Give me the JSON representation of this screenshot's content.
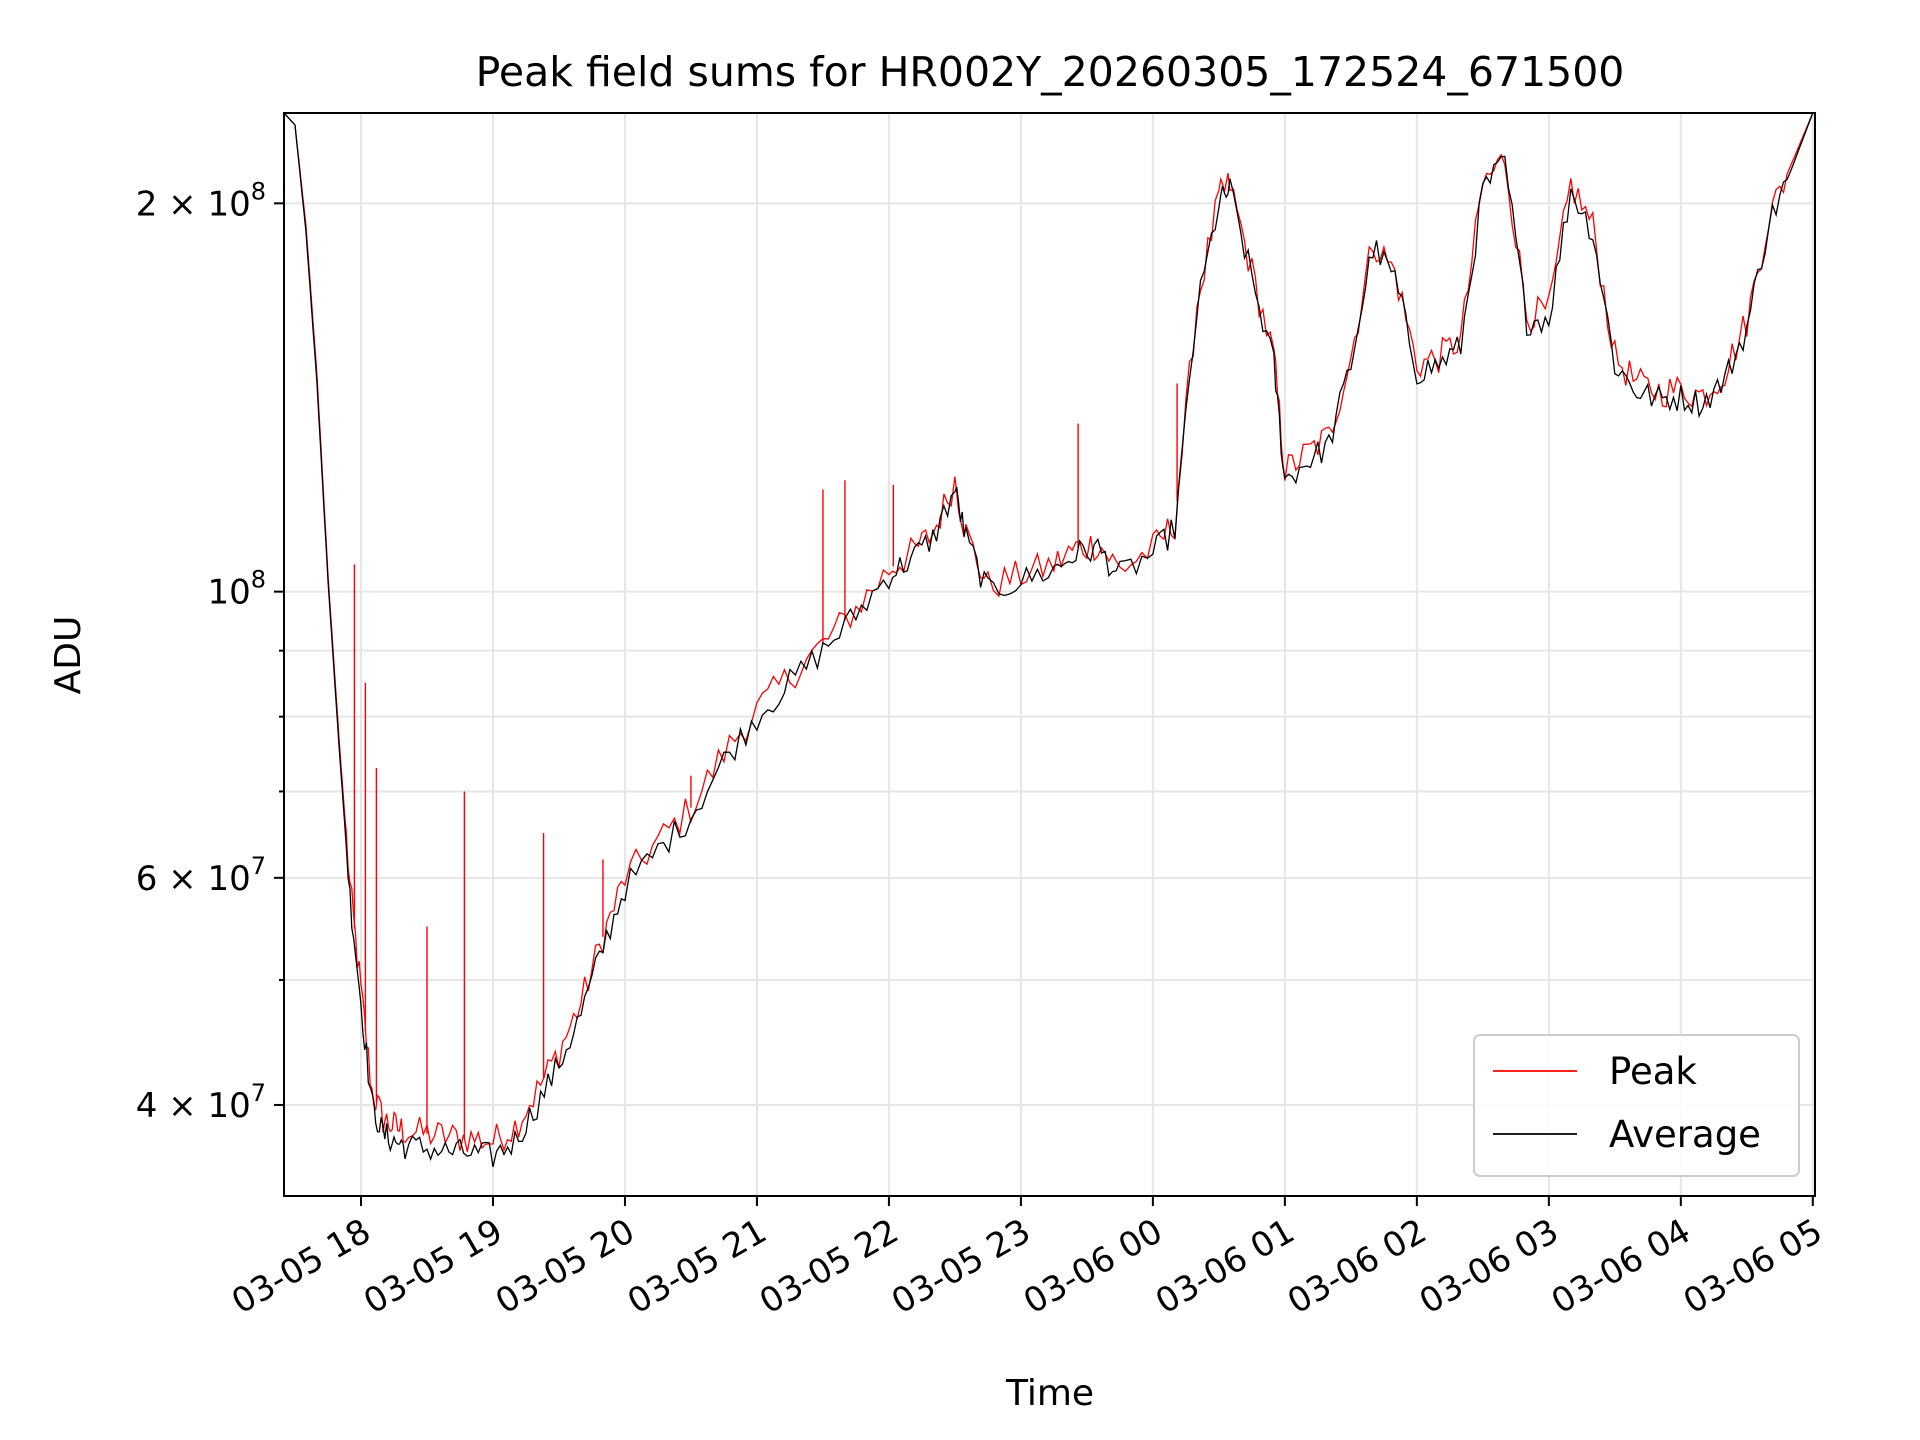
{
  "chart_data": {
    "type": "line",
    "title": "Peak field sums for HR002Y_20260305_172524_671500",
    "xlabel": "Time",
    "ylabel": "ADU",
    "y_scale": "log",
    "ylim": [
      34000000,
      235000000
    ],
    "xlim": [
      "2026-03-05 17:25",
      "2026-03-06 05:01"
    ],
    "grid": true,
    "legend_position": "lower-right",
    "colors": {
      "peak": "#ff0000",
      "average": "#000000"
    },
    "x_ticks": [
      {
        "t": "2026-03-05 18:00",
        "label": "03-05 18"
      },
      {
        "t": "2026-03-05 19:00",
        "label": "03-05 19"
      },
      {
        "t": "2026-03-05 20:00",
        "label": "03-05 20"
      },
      {
        "t": "2026-03-05 21:00",
        "label": "03-05 21"
      },
      {
        "t": "2026-03-05 22:00",
        "label": "03-05 22"
      },
      {
        "t": "2026-03-05 23:00",
        "label": "03-05 23"
      },
      {
        "t": "2026-03-06 00:00",
        "label": "03-06 00"
      },
      {
        "t": "2026-03-06 01:00",
        "label": "03-06 01"
      },
      {
        "t": "2026-03-06 02:00",
        "label": "03-06 02"
      },
      {
        "t": "2026-03-06 03:00",
        "label": "03-06 03"
      },
      {
        "t": "2026-03-06 04:00",
        "label": "03-06 04"
      },
      {
        "t": "2026-03-06 05:00",
        "label": "03-06 05"
      }
    ],
    "y_major_ticks": [
      {
        "value": 40000000,
        "base": "4 × 10",
        "exp": "7"
      },
      {
        "value": 60000000,
        "base": "6 × 10",
        "exp": "7"
      },
      {
        "value": 100000000,
        "base": "10",
        "exp": "8"
      },
      {
        "value": 200000000,
        "base": "2 × 10",
        "exp": "8"
      }
    ],
    "y_minor_ticks": [
      50000000,
      70000000,
      80000000,
      90000000
    ],
    "series": [
      {
        "name": "Average",
        "x": [
          "2026-03-05 17:25",
          "2026-03-05 17:30",
          "2026-03-05 17:35",
          "2026-03-05 17:40",
          "2026-03-05 17:45",
          "2026-03-05 17:50",
          "2026-03-05 17:55",
          "2026-03-05 18:00",
          "2026-03-05 18:05",
          "2026-03-05 18:10",
          "2026-03-05 18:15",
          "2026-03-05 18:20",
          "2026-03-05 18:30",
          "2026-03-05 18:40",
          "2026-03-05 18:50",
          "2026-03-05 19:00",
          "2026-03-05 19:10",
          "2026-03-05 19:20",
          "2026-03-05 19:30",
          "2026-03-05 19:40",
          "2026-03-05 19:50",
          "2026-03-05 20:00",
          "2026-03-05 20:15",
          "2026-03-05 20:30",
          "2026-03-05 20:45",
          "2026-03-05 21:00",
          "2026-03-05 21:15",
          "2026-03-05 21:30",
          "2026-03-05 21:45",
          "2026-03-05 22:00",
          "2026-03-05 22:10",
          "2026-03-05 22:20",
          "2026-03-05 22:30",
          "2026-03-05 22:35",
          "2026-03-05 22:45",
          "2026-03-05 23:00",
          "2026-03-05 23:15",
          "2026-03-05 23:25",
          "2026-03-05 23:35",
          "2026-03-05 23:45",
          "2026-03-06 00:00",
          "2026-03-06 00:10",
          "2026-03-06 00:20",
          "2026-03-06 00:30",
          "2026-03-06 00:35",
          "2026-03-06 00:45",
          "2026-03-06 00:55",
          "2026-03-06 01:00",
          "2026-03-06 01:10",
          "2026-03-06 01:20",
          "2026-03-06 01:30",
          "2026-03-06 01:40",
          "2026-03-06 01:50",
          "2026-03-06 02:00",
          "2026-03-06 02:10",
          "2026-03-06 02:20",
          "2026-03-06 02:30",
          "2026-03-06 02:40",
          "2026-03-06 02:50",
          "2026-03-06 03:00",
          "2026-03-06 03:10",
          "2026-03-06 03:20",
          "2026-03-06 03:30",
          "2026-03-06 03:40",
          "2026-03-06 03:50",
          "2026-03-06 04:00",
          "2026-03-06 04:10",
          "2026-03-06 04:20",
          "2026-03-06 04:30",
          "2026-03-06 04:40",
          "2026-03-06 04:50",
          "2026-03-06 05:00"
        ],
        "values": [
          235000000,
          230000000,
          190000000,
          145000000,
          102000000,
          76000000,
          58000000,
          48000000,
          40000000,
          38000000,
          37500000,
          37200000,
          37000000,
          36800000,
          36700000,
          36500000,
          37500000,
          40000000,
          43000000,
          47000000,
          53000000,
          59000000,
          63000000,
          67000000,
          74000000,
          80000000,
          85000000,
          90000000,
          96000000,
          103000000,
          106000000,
          110000000,
          120000000,
          110000000,
          100000000,
          102000000,
          104000000,
          107000000,
          108000000,
          103000000,
          107000000,
          112000000,
          165000000,
          200000000,
          205000000,
          175000000,
          150000000,
          122000000,
          126000000,
          130000000,
          150000000,
          185000000,
          175000000,
          148000000,
          150000000,
          155000000,
          205000000,
          215000000,
          162000000,
          163000000,
          205000000,
          190000000,
          150000000,
          143000000,
          141000000,
          141500000,
          140000000,
          146000000,
          160000000,
          193000000,
          212000000,
          235000000
        ]
      },
      {
        "name": "Peak",
        "x": [
          "2026-03-05 17:25",
          "2026-03-05 17:30",
          "2026-03-05 17:35",
          "2026-03-05 17:40",
          "2026-03-05 17:45",
          "2026-03-05 17:50",
          "2026-03-05 17:55",
          "2026-03-05 18:00",
          "2026-03-05 18:05",
          "2026-03-05 18:10",
          "2026-03-05 18:15",
          "2026-03-05 18:20",
          "2026-03-05 18:30",
          "2026-03-05 18:40",
          "2026-03-05 18:50",
          "2026-03-05 19:00",
          "2026-03-05 19:10",
          "2026-03-05 19:20",
          "2026-03-05 19:30",
          "2026-03-05 19:40",
          "2026-03-05 19:50",
          "2026-03-05 20:00",
          "2026-03-05 20:15",
          "2026-03-05 20:30",
          "2026-03-05 20:45",
          "2026-03-05 21:00",
          "2026-03-05 21:15",
          "2026-03-05 21:30",
          "2026-03-05 21:45",
          "2026-03-05 22:00",
          "2026-03-05 22:10",
          "2026-03-05 22:20",
          "2026-03-05 22:30",
          "2026-03-05 22:35",
          "2026-03-05 22:45",
          "2026-03-05 23:00",
          "2026-03-05 23:15",
          "2026-03-05 23:25",
          "2026-03-05 23:35",
          "2026-03-05 23:45",
          "2026-03-06 00:00",
          "2026-03-06 00:10",
          "2026-03-06 00:20",
          "2026-03-06 00:30",
          "2026-03-06 00:35",
          "2026-03-06 00:45",
          "2026-03-06 00:55",
          "2026-03-06 01:00",
          "2026-03-06 01:10",
          "2026-03-06 01:20",
          "2026-03-06 01:30",
          "2026-03-06 01:40",
          "2026-03-06 01:50",
          "2026-03-06 02:00",
          "2026-03-06 02:10",
          "2026-03-06 02:20",
          "2026-03-06 02:30",
          "2026-03-06 02:40",
          "2026-03-06 02:50",
          "2026-03-06 03:00",
          "2026-03-06 03:10",
          "2026-03-06 03:20",
          "2026-03-06 03:30",
          "2026-03-06 03:40",
          "2026-03-06 03:50",
          "2026-03-06 04:00",
          "2026-03-06 04:10",
          "2026-03-06 04:20",
          "2026-03-06 04:30",
          "2026-03-06 04:40",
          "2026-03-06 04:50",
          "2026-03-06 05:00"
        ],
        "values": [
          235000000,
          230000000,
          192000000,
          147000000,
          103000000,
          77000000,
          59000000,
          49000000,
          41000000,
          39000000,
          38500000,
          38200000,
          38000000,
          37800000,
          37700000,
          37500000,
          38500000,
          41000000,
          44000000,
          48000000,
          54000000,
          60000000,
          64000000,
          68000000,
          75000000,
          81000000,
          86000000,
          91000000,
          97000000,
          104000000,
          107000000,
          111000000,
          122000000,
          111000000,
          101000000,
          103000000,
          105000000,
          108000000,
          109000000,
          104000000,
          108000000,
          113000000,
          167000000,
          202000000,
          207000000,
          177000000,
          152000000,
          124000000,
          128000000,
          132000000,
          152000000,
          187000000,
          177000000,
          150000000,
          152000000,
          157000000,
          207000000,
          217000000,
          164000000,
          165000000,
          207000000,
          192000000,
          152000000,
          145000000,
          143000000,
          143500000,
          142000000,
          148000000,
          162000000,
          195000000,
          214000000,
          235000000
        ]
      }
    ],
    "spike_annotations_peak": [
      {
        "t": "2026-03-05 17:57",
        "value": 105000000
      },
      {
        "t": "2026-03-05 18:02",
        "value": 85000000
      },
      {
        "t": "2026-03-05 18:07",
        "value": 73000000
      },
      {
        "t": "2026-03-05 18:30",
        "value": 55000000
      },
      {
        "t": "2026-03-05 18:47",
        "value": 70000000
      },
      {
        "t": "2026-03-05 19:23",
        "value": 65000000
      },
      {
        "t": "2026-03-05 19:50",
        "value": 62000000
      },
      {
        "t": "2026-03-05 20:30",
        "value": 72000000
      },
      {
        "t": "2026-03-05 21:30",
        "value": 120000000
      },
      {
        "t": "2026-03-05 21:40",
        "value": 122000000
      },
      {
        "t": "2026-03-05 22:02",
        "value": 121000000
      },
      {
        "t": "2026-03-05 23:26",
        "value": 135000000
      },
      {
        "t": "2026-03-06 00:11",
        "value": 145000000
      }
    ],
    "legend": [
      {
        "name": "Peak",
        "color": "#ff0000"
      },
      {
        "name": "Average",
        "color": "#000000"
      }
    ]
  }
}
